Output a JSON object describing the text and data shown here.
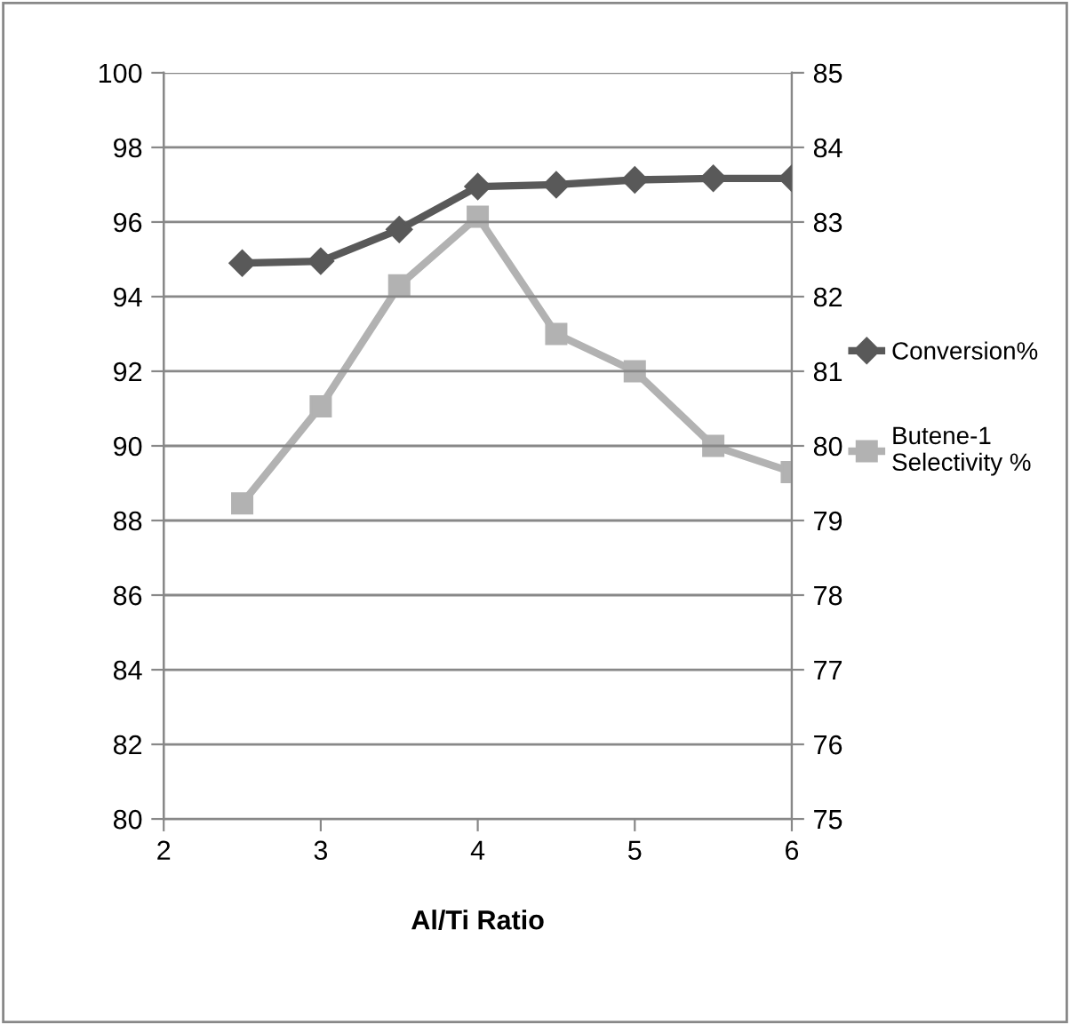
{
  "chart_data": {
    "type": "line",
    "xlabel": "Al/Ti Ratio",
    "xlim": [
      2,
      6
    ],
    "xticks": [
      2,
      3,
      4,
      5,
      6
    ],
    "ylim": [
      80,
      100
    ],
    "yticks": [
      80,
      82,
      84,
      86,
      88,
      90,
      92,
      94,
      96,
      98,
      100
    ],
    "y2lim": [
      75,
      85
    ],
    "y2ticks": [
      75,
      76,
      77,
      78,
      79,
      80,
      81,
      82,
      83,
      84,
      85
    ],
    "x": [
      2.5,
      3,
      3.5,
      4,
      4.5,
      5,
      5.5,
      6
    ],
    "series": [
      {
        "name": "Conversion%",
        "color": "#595959",
        "marker": "diamond",
        "values": [
          94.9,
          94.95,
          95.8,
          96.95,
          97.0,
          97.13,
          97.17,
          97.17
        ]
      },
      {
        "name": "Butene-1 Selectivity %",
        "color": "#b2b2b2",
        "marker": "square",
        "axis": "y2",
        "values": [
          79.23,
          80.53,
          82.15,
          83.07,
          81.5,
          81.0,
          80.0,
          79.65
        ]
      }
    ],
    "grid": "y",
    "legend": "right"
  }
}
